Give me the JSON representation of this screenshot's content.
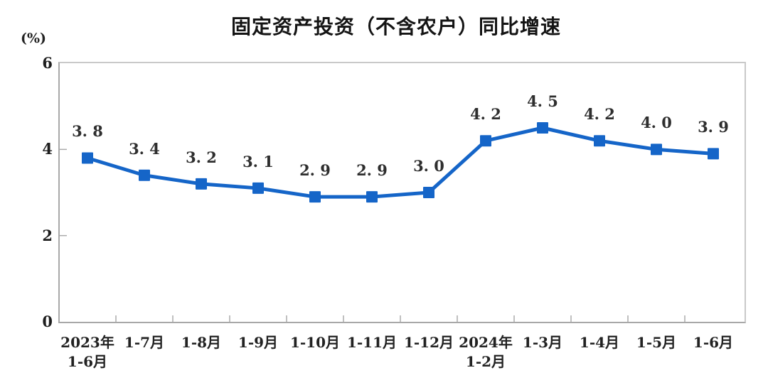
{
  "chart_data": {
    "type": "line",
    "title": "固定资产投资（不含农户）同比增速",
    "unit": "(%)",
    "categories": [
      "2023年\n1-6月",
      "1-7月",
      "1-8月",
      "1-9月",
      "1-10月",
      "1-11月",
      "1-12月",
      "2024年\n1-2月",
      "1-3月",
      "1-4月",
      "1-5月",
      "1-6月"
    ],
    "values": [
      3.8,
      3.4,
      3.2,
      3.1,
      2.9,
      2.9,
      3.0,
      4.2,
      4.5,
      4.2,
      4.0,
      3.9
    ],
    "data_labels": [
      "3. 8",
      "3. 4",
      "3. 2",
      "3. 1",
      "2. 9",
      "2. 9",
      "3. 0",
      "4. 2",
      "4. 5",
      "4. 2",
      "4. 0",
      "3. 9"
    ],
    "xlabel": "",
    "ylabel": "(%)",
    "ylim": [
      0,
      6
    ],
    "yticks": [
      0,
      2,
      4,
      6
    ],
    "grid": false,
    "legend": null,
    "marker": "square",
    "line_color": "#1565C8",
    "label_color": "#2e2e2e",
    "axis_color": "#ababab",
    "frame_color": "#c9c9c9"
  }
}
